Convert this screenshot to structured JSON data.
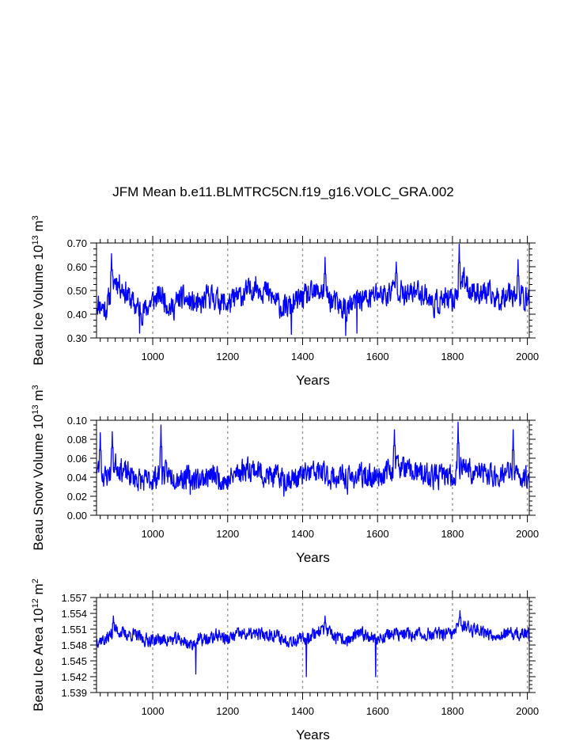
{
  "figure": {
    "title": "JFM Mean b.e11.BLMTRC5CN.f19_g16.VOLC_GRA.002"
  },
  "style": {
    "line_color": "#0000ff",
    "axis_color": "#000000",
    "grid_color": "#999999"
  },
  "chart_data": [
    {
      "type": "line",
      "id": "ice-volume",
      "ylabel": "Beau Ice Volume 10^13 m^3",
      "ylabel_parts": {
        "pre": "Beau Ice Volume 10",
        "exp1": "13",
        "mid": " m",
        "exp2": "3"
      },
      "xlabel": "Years",
      "xlim": [
        850,
        2005
      ],
      "ylim": [
        0.3,
        0.7
      ],
      "xticks": [
        1000,
        1200,
        1400,
        1600,
        1800,
        2000
      ],
      "yticks": [
        0.3,
        0.4,
        0.5,
        0.6,
        0.7
      ],
      "ytick_labels": [
        "0.30",
        "0.40",
        "0.50",
        "0.60",
        "0.70"
      ],
      "x": [
        850,
        875,
        900,
        925,
        950,
        975,
        1000,
        1025,
        1050,
        1075,
        1100,
        1125,
        1150,
        1175,
        1200,
        1225,
        1250,
        1275,
        1300,
        1325,
        1350,
        1375,
        1400,
        1425,
        1450,
        1475,
        1500,
        1525,
        1550,
        1575,
        1600,
        1625,
        1650,
        1675,
        1700,
        1725,
        1750,
        1775,
        1800,
        1825,
        1850,
        1875,
        1900,
        1925,
        1950,
        1975,
        2000,
        2005
      ],
      "values": [
        0.45,
        0.42,
        0.55,
        0.5,
        0.44,
        0.41,
        0.46,
        0.48,
        0.42,
        0.47,
        0.45,
        0.43,
        0.48,
        0.46,
        0.44,
        0.47,
        0.49,
        0.52,
        0.5,
        0.46,
        0.42,
        0.44,
        0.47,
        0.48,
        0.5,
        0.46,
        0.43,
        0.42,
        0.47,
        0.46,
        0.49,
        0.48,
        0.52,
        0.47,
        0.5,
        0.49,
        0.44,
        0.46,
        0.45,
        0.55,
        0.5,
        0.49,
        0.48,
        0.46,
        0.5,
        0.48,
        0.46,
        0.47
      ],
      "detail": {
        "noise": 0.045,
        "seed": 11,
        "min_clip": 0.31,
        "max_clip": 0.7,
        "peaks": [
          [
            890,
            0.655
          ],
          [
            1460,
            0.64
          ],
          [
            1650,
            0.62
          ],
          [
            1818,
            0.695
          ],
          [
            1975,
            0.63
          ]
        ],
        "dips": [
          [
            965,
            0.32
          ],
          [
            1370,
            0.315
          ],
          [
            1515,
            0.31
          ],
          [
            1545,
            0.32
          ]
        ]
      }
    },
    {
      "type": "line",
      "id": "snow-volume",
      "ylabel": "Beau Snow Volume 10^13 m^3",
      "ylabel_parts": {
        "pre": "Beau Snow Volume 10",
        "exp1": "13",
        "mid": " m",
        "exp2": "3"
      },
      "xlabel": "Years",
      "xlim": [
        850,
        2005
      ],
      "ylim": [
        0.0,
        0.1
      ],
      "xticks": [
        1000,
        1200,
        1400,
        1600,
        1800,
        2000
      ],
      "yticks": [
        0.0,
        0.02,
        0.04,
        0.06,
        0.08,
        0.1
      ],
      "ytick_labels": [
        "0.00",
        "0.02",
        "0.04",
        "0.06",
        "0.08",
        "0.10"
      ],
      "x": [
        850,
        875,
        900,
        925,
        950,
        975,
        1000,
        1025,
        1050,
        1075,
        1100,
        1125,
        1150,
        1175,
        1200,
        1225,
        1250,
        1275,
        1300,
        1325,
        1350,
        1375,
        1400,
        1425,
        1450,
        1475,
        1500,
        1525,
        1550,
        1575,
        1600,
        1625,
        1650,
        1675,
        1700,
        1725,
        1750,
        1775,
        1800,
        1825,
        1850,
        1875,
        1900,
        1925,
        1950,
        1975,
        2000,
        2005
      ],
      "values": [
        0.05,
        0.04,
        0.055,
        0.045,
        0.04,
        0.035,
        0.038,
        0.045,
        0.042,
        0.04,
        0.04,
        0.038,
        0.042,
        0.04,
        0.035,
        0.045,
        0.05,
        0.048,
        0.042,
        0.04,
        0.04,
        0.038,
        0.042,
        0.045,
        0.045,
        0.04,
        0.04,
        0.038,
        0.042,
        0.04,
        0.042,
        0.045,
        0.055,
        0.048,
        0.045,
        0.042,
        0.04,
        0.042,
        0.04,
        0.055,
        0.045,
        0.045,
        0.042,
        0.042,
        0.045,
        0.04,
        0.04,
        0.042
      ],
      "detail": {
        "noise": 0.011,
        "seed": 23,
        "min_clip": 0.018,
        "max_clip": 0.098,
        "peaks": [
          [
            860,
            0.087
          ],
          [
            892,
            0.088
          ],
          [
            1022,
            0.095
          ],
          [
            1645,
            0.09
          ],
          [
            1815,
            0.098
          ],
          [
            1962,
            0.09
          ]
        ],
        "dips": [
          [
            1100,
            0.022
          ],
          [
            1350,
            0.02
          ],
          [
            1520,
            0.022
          ]
        ]
      }
    },
    {
      "type": "line",
      "id": "ice-area",
      "ylabel": "Beau Ice Area 10^12 m^2",
      "ylabel_parts": {
        "pre": "Beau Ice Area 10",
        "exp1": "12",
        "mid": " m",
        "exp2": "2"
      },
      "xlabel": "Years",
      "xlim": [
        850,
        2005
      ],
      "ylim": [
        1.539,
        1.557
      ],
      "xticks": [
        1000,
        1200,
        1400,
        1600,
        1800,
        2000
      ],
      "yticks": [
        1.539,
        1.542,
        1.545,
        1.548,
        1.551,
        1.554,
        1.557
      ],
      "ytick_labels": [
        "1.539",
        "1.542",
        "1.545",
        "1.548",
        "1.551",
        "1.554",
        "1.557"
      ],
      "x": [
        850,
        875,
        900,
        925,
        950,
        975,
        1000,
        1025,
        1050,
        1075,
        1100,
        1125,
        1150,
        1175,
        1200,
        1225,
        1250,
        1275,
        1300,
        1325,
        1350,
        1375,
        1400,
        1425,
        1450,
        1475,
        1500,
        1525,
        1550,
        1575,
        1600,
        1625,
        1650,
        1675,
        1700,
        1725,
        1750,
        1775,
        1800,
        1825,
        1850,
        1875,
        1900,
        1925,
        1950,
        1975,
        2000,
        2005
      ],
      "values": [
        1.549,
        1.549,
        1.551,
        1.55,
        1.55,
        1.549,
        1.549,
        1.549,
        1.549,
        1.549,
        1.548,
        1.549,
        1.549,
        1.55,
        1.549,
        1.55,
        1.55,
        1.55,
        1.55,
        1.55,
        1.549,
        1.549,
        1.549,
        1.55,
        1.551,
        1.55,
        1.549,
        1.549,
        1.55,
        1.55,
        1.549,
        1.55,
        1.55,
        1.55,
        1.55,
        1.55,
        1.55,
        1.55,
        1.55,
        1.552,
        1.551,
        1.551,
        1.55,
        1.55,
        1.55,
        1.55,
        1.55,
        1.55
      ],
      "detail": {
        "noise": 0.0011,
        "seed": 37,
        "min_clip": 1.5418,
        "max_clip": 1.5545,
        "peaks": [
          [
            895,
            1.5535
          ],
          [
            1460,
            1.5535
          ],
          [
            1820,
            1.5545
          ]
        ],
        "dips": [
          [
            1115,
            1.5425
          ],
          [
            1410,
            1.542
          ],
          [
            1595,
            1.542
          ]
        ]
      }
    }
  ]
}
